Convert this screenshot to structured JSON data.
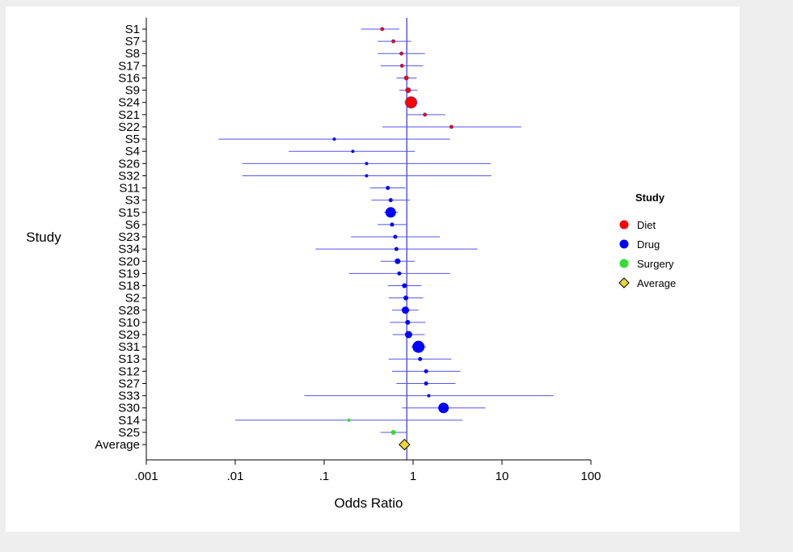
{
  "chart_data": {
    "type": "scatter",
    "subtype": "forest-plot",
    "title": "",
    "xlabel": "Odds Ratio",
    "ylabel": "Study",
    "xscale": "log",
    "xlim": [
      0.001,
      100
    ],
    "xticks": [
      0.001,
      0.01,
      0.1,
      1,
      10,
      100
    ],
    "xtick_labels": [
      ".001",
      ".01",
      ".1",
      "1",
      "10",
      "100"
    ],
    "reference_line": 0.85,
    "grid": false,
    "legend": {
      "title": "Study",
      "placement": "right",
      "entries": [
        {
          "label": "Diet",
          "color": "#ff0000",
          "shape": "circle"
        },
        {
          "label": "Drug",
          "color": "#0000ff",
          "shape": "circle"
        },
        {
          "label": "Surgery",
          "color": "#33dd33",
          "shape": "circle"
        },
        {
          "label": "Average",
          "color": "#e8d83a",
          "shape": "diamond"
        }
      ]
    },
    "studies": [
      {
        "label": "S1",
        "group": "Diet",
        "or": 0.45,
        "lo": 0.26,
        "hi": 0.7,
        "weight": 2
      },
      {
        "label": "S7",
        "group": "Diet",
        "or": 0.6,
        "lo": 0.4,
        "hi": 0.95,
        "weight": 2
      },
      {
        "label": "S8",
        "group": "Diet",
        "or": 0.74,
        "lo": 0.4,
        "hi": 1.36,
        "weight": 2
      },
      {
        "label": "S17",
        "group": "Diet",
        "or": 0.75,
        "lo": 0.43,
        "hi": 1.3,
        "weight": 2
      },
      {
        "label": "S16",
        "group": "Diet",
        "or": 0.84,
        "lo": 0.65,
        "hi": 1.1,
        "weight": 2.5
      },
      {
        "label": "S9",
        "group": "Diet",
        "or": 0.88,
        "lo": 0.7,
        "hi": 1.12,
        "weight": 3
      },
      {
        "label": "S24",
        "group": "Diet",
        "or": 0.95,
        "lo": 0.8,
        "hi": 1.12,
        "weight": 7
      },
      {
        "label": "S21",
        "group": "Diet",
        "or": 1.36,
        "lo": 0.85,
        "hi": 2.3,
        "weight": 2
      },
      {
        "label": "S22",
        "group": "Diet",
        "or": 2.7,
        "lo": 0.45,
        "hi": 16.5,
        "weight": 2
      },
      {
        "label": "S5",
        "group": "Drug",
        "or": 0.13,
        "lo": 0.0065,
        "hi": 2.6,
        "weight": 2
      },
      {
        "label": "S4",
        "group": "Drug",
        "or": 0.21,
        "lo": 0.04,
        "hi": 1.05,
        "weight": 2
      },
      {
        "label": "S26",
        "group": "Drug",
        "or": 0.3,
        "lo": 0.012,
        "hi": 7.5,
        "weight": 2
      },
      {
        "label": "S32",
        "group": "Drug",
        "or": 0.3,
        "lo": 0.012,
        "hi": 7.6,
        "weight": 2
      },
      {
        "label": "S11",
        "group": "Drug",
        "or": 0.52,
        "lo": 0.33,
        "hi": 0.82,
        "weight": 2.5
      },
      {
        "label": "S3",
        "group": "Drug",
        "or": 0.56,
        "lo": 0.34,
        "hi": 0.92,
        "weight": 2.5
      },
      {
        "label": "S15",
        "group": "Drug",
        "or": 0.56,
        "lo": 0.47,
        "hi": 0.68,
        "weight": 6.5
      },
      {
        "label": "S6",
        "group": "Drug",
        "or": 0.58,
        "lo": 0.4,
        "hi": 0.85,
        "weight": 2.5
      },
      {
        "label": "S23",
        "group": "Drug",
        "or": 0.63,
        "lo": 0.2,
        "hi": 2.0,
        "weight": 2.5
      },
      {
        "label": "S34",
        "group": "Drug",
        "or": 0.65,
        "lo": 0.08,
        "hi": 5.3,
        "weight": 2.5
      },
      {
        "label": "S20",
        "group": "Drug",
        "or": 0.67,
        "lo": 0.43,
        "hi": 1.05,
        "weight": 3.5
      },
      {
        "label": "S19",
        "group": "Drug",
        "or": 0.7,
        "lo": 0.19,
        "hi": 2.6,
        "weight": 2.5
      },
      {
        "label": "S18",
        "group": "Drug",
        "or": 0.8,
        "lo": 0.52,
        "hi": 1.24,
        "weight": 3
      },
      {
        "label": "S2",
        "group": "Drug",
        "or": 0.83,
        "lo": 0.53,
        "hi": 1.3,
        "weight": 3
      },
      {
        "label": "S28",
        "group": "Drug",
        "or": 0.82,
        "lo": 0.58,
        "hi": 1.15,
        "weight": 4.5
      },
      {
        "label": "S10",
        "group": "Drug",
        "or": 0.87,
        "lo": 0.55,
        "hi": 1.38,
        "weight": 3
      },
      {
        "label": "S29",
        "group": "Drug",
        "or": 0.89,
        "lo": 0.59,
        "hi": 1.35,
        "weight": 4.5
      },
      {
        "label": "S31",
        "group": "Drug",
        "or": 1.15,
        "lo": 0.95,
        "hi": 1.4,
        "weight": 7.5
      },
      {
        "label": "S13",
        "group": "Drug",
        "or": 1.2,
        "lo": 0.53,
        "hi": 2.7,
        "weight": 2.5
      },
      {
        "label": "S12",
        "group": "Drug",
        "or": 1.4,
        "lo": 0.58,
        "hi": 3.4,
        "weight": 2.5
      },
      {
        "label": "S27",
        "group": "Drug",
        "or": 1.4,
        "lo": 0.65,
        "hi": 3.0,
        "weight": 2.5
      },
      {
        "label": "S33",
        "group": "Drug",
        "or": 1.5,
        "lo": 0.06,
        "hi": 38.0,
        "weight": 2
      },
      {
        "label": "S30",
        "group": "Drug",
        "or": 2.2,
        "lo": 0.75,
        "hi": 6.5,
        "weight": 6.5
      },
      {
        "label": "S14",
        "group": "Surgery",
        "or": 0.19,
        "lo": 0.01,
        "hi": 3.6,
        "weight": 2
      },
      {
        "label": "S25",
        "group": "Surgery",
        "or": 0.6,
        "lo": 0.43,
        "hi": 0.85,
        "weight": 3
      },
      {
        "label": "Average",
        "group": "Average",
        "or": 0.8,
        "lo": 0.72,
        "hi": 0.88,
        "weight": 0
      }
    ]
  }
}
